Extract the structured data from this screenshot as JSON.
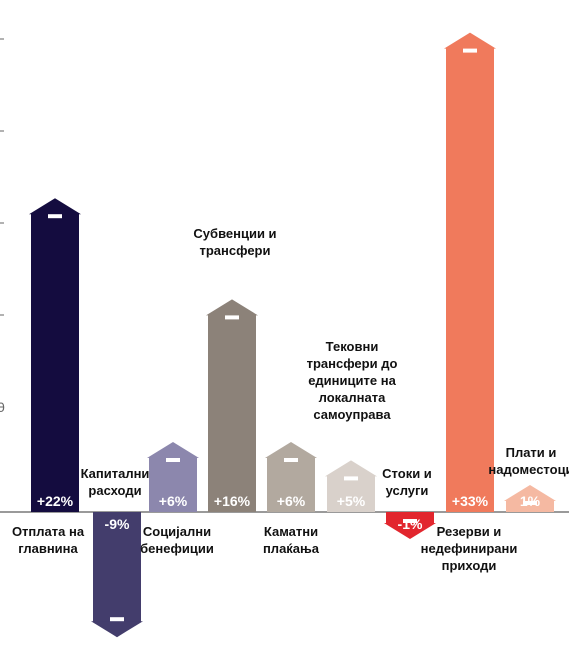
{
  "chart_data": {
    "type": "bar",
    "ylim": [
      -1.35,
      4.8
    ],
    "yticks": [
      {
        "value": 0,
        "label": "0"
      },
      {
        "value": 1,
        "label": ""
      },
      {
        "value": 2,
        "label": ""
      },
      {
        "value": 3,
        "label": ""
      },
      {
        "value": 4,
        "label": ""
      }
    ],
    "grid": false,
    "legend": "none",
    "categories": [
      {
        "label": "Отплата на главнина",
        "value": 3.4,
        "change": "+22%",
        "color": "#140c3f",
        "direction": "up"
      },
      {
        "label": "Капитални расходи",
        "value": -1.35,
        "change": "-9%",
        "color": "#433d6c",
        "direction": "down"
      },
      {
        "label": "Социјални бенефиции",
        "value": 0.75,
        "change": "+6%",
        "color": "#8c87ad",
        "direction": "up"
      },
      {
        "label": "Субвенции и трансфери",
        "value": 2.3,
        "change": "+16%",
        "color": "#8c8279",
        "direction": "up"
      },
      {
        "label": "Каматни плаќања",
        "value": 0.75,
        "change": "+6%",
        "color": "#b2a99f",
        "direction": "up"
      },
      {
        "label": "Тековни трансфери до единиците на локалната самоуправа",
        "value": 0.55,
        "change": "+5%",
        "color": "#d9d1cb",
        "direction": "up"
      },
      {
        "label": "Стоки и услуги",
        "value": -0.1,
        "change": "-1%",
        "color": "#e2262e",
        "direction": "down"
      },
      {
        "label": "Резерви и недефинирани приходи",
        "value": 5.2,
        "change": "+33%",
        "color": "#f07a5c",
        "direction": "up"
      },
      {
        "label": "Плати и надоместоци",
        "value": 0.1,
        "change": "1%",
        "color": "#f5b9a2",
        "direction": "up"
      }
    ]
  }
}
